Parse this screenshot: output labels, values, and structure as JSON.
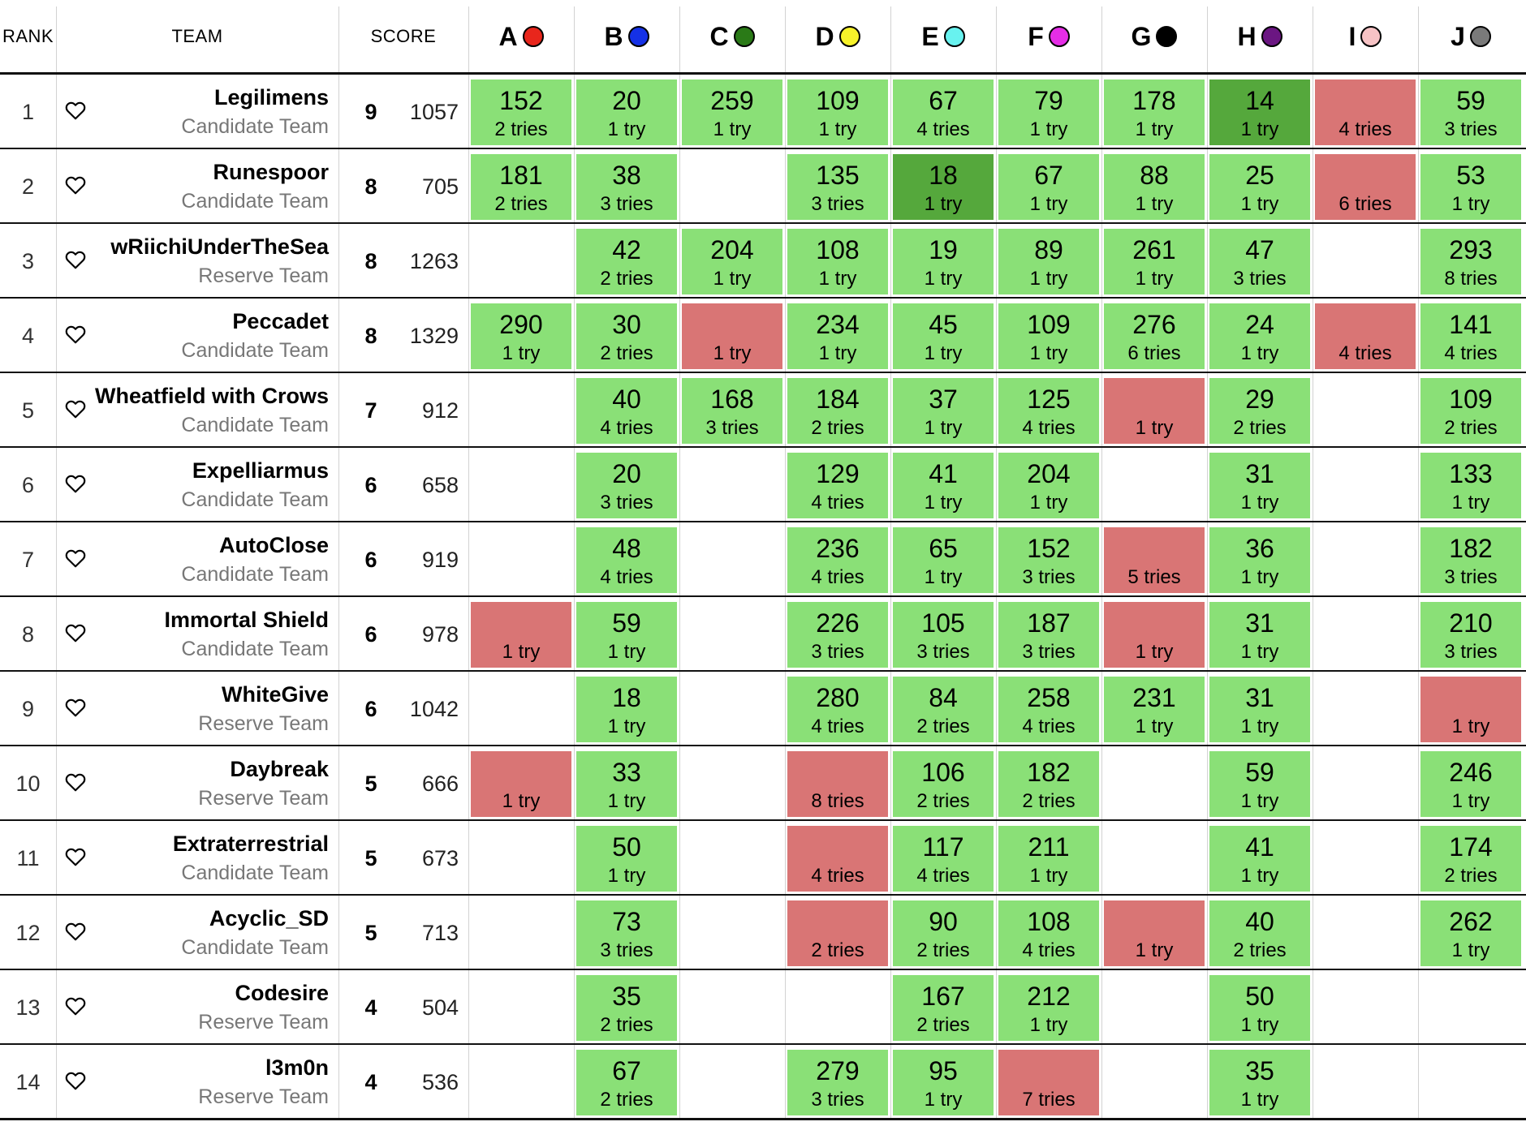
{
  "header": {
    "rank": "RANK",
    "team": "TEAM",
    "score": "SCORE"
  },
  "problems": [
    {
      "label": "A",
      "color": "#e8261c"
    },
    {
      "label": "B",
      "color": "#1531e6"
    },
    {
      "label": "C",
      "color": "#2a7a17"
    },
    {
      "label": "D",
      "color": "#f7f22a"
    },
    {
      "label": "E",
      "color": "#68f2ef"
    },
    {
      "label": "F",
      "color": "#e52de6"
    },
    {
      "label": "G",
      "color": "#000000"
    },
    {
      "label": "H",
      "color": "#6b1682"
    },
    {
      "label": "I",
      "color": "#f7c3c5"
    },
    {
      "label": "J",
      "color": "#7a7a7a"
    }
  ],
  "colors": {
    "solved": "#8ae077",
    "first_solve": "#55a83c",
    "failed": "#d97575"
  },
  "teams": [
    {
      "rank": "1",
      "name": "Legilimens",
      "affiliation": "Candidate Team",
      "solved": "9",
      "penalty": "1057",
      "results": [
        {
          "time": "152",
          "tries": "2 tries",
          "status": "ok"
        },
        {
          "time": "20",
          "tries": "1 try",
          "status": "ok"
        },
        {
          "time": "259",
          "tries": "1 try",
          "status": "ok"
        },
        {
          "time": "109",
          "tries": "1 try",
          "status": "ok"
        },
        {
          "time": "67",
          "tries": "4 tries",
          "status": "ok"
        },
        {
          "time": "79",
          "tries": "1 try",
          "status": "ok"
        },
        {
          "time": "178",
          "tries": "1 try",
          "status": "ok"
        },
        {
          "time": "14",
          "tries": "1 try",
          "status": "first"
        },
        {
          "time": "",
          "tries": "4 tries",
          "status": "fail"
        },
        {
          "time": "59",
          "tries": "3 tries",
          "status": "ok"
        }
      ]
    },
    {
      "rank": "2",
      "name": "Runespoor",
      "affiliation": "Candidate Team",
      "solved": "8",
      "penalty": "705",
      "results": [
        {
          "time": "181",
          "tries": "2 tries",
          "status": "ok"
        },
        {
          "time": "38",
          "tries": "3 tries",
          "status": "ok"
        },
        {
          "time": "",
          "tries": "",
          "status": "none"
        },
        {
          "time": "135",
          "tries": "3 tries",
          "status": "ok"
        },
        {
          "time": "18",
          "tries": "1 try",
          "status": "first"
        },
        {
          "time": "67",
          "tries": "1 try",
          "status": "ok"
        },
        {
          "time": "88",
          "tries": "1 try",
          "status": "ok"
        },
        {
          "time": "25",
          "tries": "1 try",
          "status": "ok"
        },
        {
          "time": "",
          "tries": "6 tries",
          "status": "fail"
        },
        {
          "time": "53",
          "tries": "1 try",
          "status": "ok"
        }
      ]
    },
    {
      "rank": "3",
      "name": "wRiichiUnderTheSea",
      "affiliation": "Reserve Team",
      "solved": "8",
      "penalty": "1263",
      "results": [
        {
          "time": "",
          "tries": "",
          "status": "none"
        },
        {
          "time": "42",
          "tries": "2 tries",
          "status": "ok"
        },
        {
          "time": "204",
          "tries": "1 try",
          "status": "ok"
        },
        {
          "time": "108",
          "tries": "1 try",
          "status": "ok"
        },
        {
          "time": "19",
          "tries": "1 try",
          "status": "ok"
        },
        {
          "time": "89",
          "tries": "1 try",
          "status": "ok"
        },
        {
          "time": "261",
          "tries": "1 try",
          "status": "ok"
        },
        {
          "time": "47",
          "tries": "3 tries",
          "status": "ok"
        },
        {
          "time": "",
          "tries": "",
          "status": "none"
        },
        {
          "time": "293",
          "tries": "8 tries",
          "status": "ok"
        }
      ]
    },
    {
      "rank": "4",
      "name": "Peccadet",
      "affiliation": "Candidate Team",
      "solved": "8",
      "penalty": "1329",
      "results": [
        {
          "time": "290",
          "tries": "1 try",
          "status": "ok"
        },
        {
          "time": "30",
          "tries": "2 tries",
          "status": "ok"
        },
        {
          "time": "",
          "tries": "1 try",
          "status": "fail"
        },
        {
          "time": "234",
          "tries": "1 try",
          "status": "ok"
        },
        {
          "time": "45",
          "tries": "1 try",
          "status": "ok"
        },
        {
          "time": "109",
          "tries": "1 try",
          "status": "ok"
        },
        {
          "time": "276",
          "tries": "6 tries",
          "status": "ok"
        },
        {
          "time": "24",
          "tries": "1 try",
          "status": "ok"
        },
        {
          "time": "",
          "tries": "4 tries",
          "status": "fail"
        },
        {
          "time": "141",
          "tries": "4 tries",
          "status": "ok"
        }
      ]
    },
    {
      "rank": "5",
      "name": "Wheatfield with Crows",
      "affiliation": "Candidate Team",
      "solved": "7",
      "penalty": "912",
      "results": [
        {
          "time": "",
          "tries": "",
          "status": "none"
        },
        {
          "time": "40",
          "tries": "4 tries",
          "status": "ok"
        },
        {
          "time": "168",
          "tries": "3 tries",
          "status": "ok"
        },
        {
          "time": "184",
          "tries": "2 tries",
          "status": "ok"
        },
        {
          "time": "37",
          "tries": "1 try",
          "status": "ok"
        },
        {
          "time": "125",
          "tries": "4 tries",
          "status": "ok"
        },
        {
          "time": "",
          "tries": "1 try",
          "status": "fail"
        },
        {
          "time": "29",
          "tries": "2 tries",
          "status": "ok"
        },
        {
          "time": "",
          "tries": "",
          "status": "none"
        },
        {
          "time": "109",
          "tries": "2 tries",
          "status": "ok"
        }
      ]
    },
    {
      "rank": "6",
      "name": "Expelliarmus",
      "affiliation": "Candidate Team",
      "solved": "6",
      "penalty": "658",
      "results": [
        {
          "time": "",
          "tries": "",
          "status": "none"
        },
        {
          "time": "20",
          "tries": "3 tries",
          "status": "ok"
        },
        {
          "time": "",
          "tries": "",
          "status": "none"
        },
        {
          "time": "129",
          "tries": "4 tries",
          "status": "ok"
        },
        {
          "time": "41",
          "tries": "1 try",
          "status": "ok"
        },
        {
          "time": "204",
          "tries": "1 try",
          "status": "ok"
        },
        {
          "time": "",
          "tries": "",
          "status": "none"
        },
        {
          "time": "31",
          "tries": "1 try",
          "status": "ok"
        },
        {
          "time": "",
          "tries": "",
          "status": "none"
        },
        {
          "time": "133",
          "tries": "1 try",
          "status": "ok"
        }
      ]
    },
    {
      "rank": "7",
      "name": "AutoClose",
      "affiliation": "Candidate Team",
      "solved": "6",
      "penalty": "919",
      "results": [
        {
          "time": "",
          "tries": "",
          "status": "none"
        },
        {
          "time": "48",
          "tries": "4 tries",
          "status": "ok"
        },
        {
          "time": "",
          "tries": "",
          "status": "none"
        },
        {
          "time": "236",
          "tries": "4 tries",
          "status": "ok"
        },
        {
          "time": "65",
          "tries": "1 try",
          "status": "ok"
        },
        {
          "time": "152",
          "tries": "3 tries",
          "status": "ok"
        },
        {
          "time": "",
          "tries": "5 tries",
          "status": "fail"
        },
        {
          "time": "36",
          "tries": "1 try",
          "status": "ok"
        },
        {
          "time": "",
          "tries": "",
          "status": "none"
        },
        {
          "time": "182",
          "tries": "3 tries",
          "status": "ok"
        }
      ]
    },
    {
      "rank": "8",
      "name": "Immortal Shield",
      "affiliation": "Candidate Team",
      "solved": "6",
      "penalty": "978",
      "results": [
        {
          "time": "",
          "tries": "1 try",
          "status": "fail"
        },
        {
          "time": "59",
          "tries": "1 try",
          "status": "ok"
        },
        {
          "time": "",
          "tries": "",
          "status": "none"
        },
        {
          "time": "226",
          "tries": "3 tries",
          "status": "ok"
        },
        {
          "time": "105",
          "tries": "3 tries",
          "status": "ok"
        },
        {
          "time": "187",
          "tries": "3 tries",
          "status": "ok"
        },
        {
          "time": "",
          "tries": "1 try",
          "status": "fail"
        },
        {
          "time": "31",
          "tries": "1 try",
          "status": "ok"
        },
        {
          "time": "",
          "tries": "",
          "status": "none"
        },
        {
          "time": "210",
          "tries": "3 tries",
          "status": "ok"
        }
      ]
    },
    {
      "rank": "9",
      "name": "WhiteGive",
      "affiliation": "Reserve Team",
      "solved": "6",
      "penalty": "1042",
      "results": [
        {
          "time": "",
          "tries": "",
          "status": "none"
        },
        {
          "time": "18",
          "tries": "1 try",
          "status": "ok"
        },
        {
          "time": "",
          "tries": "",
          "status": "none"
        },
        {
          "time": "280",
          "tries": "4 tries",
          "status": "ok"
        },
        {
          "time": "84",
          "tries": "2 tries",
          "status": "ok"
        },
        {
          "time": "258",
          "tries": "4 tries",
          "status": "ok"
        },
        {
          "time": "231",
          "tries": "1 try",
          "status": "ok"
        },
        {
          "time": "31",
          "tries": "1 try",
          "status": "ok"
        },
        {
          "time": "",
          "tries": "",
          "status": "none"
        },
        {
          "time": "",
          "tries": "1 try",
          "status": "fail"
        }
      ]
    },
    {
      "rank": "10",
      "name": "Daybreak",
      "affiliation": "Reserve Team",
      "solved": "5",
      "penalty": "666",
      "results": [
        {
          "time": "",
          "tries": "1 try",
          "status": "fail"
        },
        {
          "time": "33",
          "tries": "1 try",
          "status": "ok"
        },
        {
          "time": "",
          "tries": "",
          "status": "none"
        },
        {
          "time": "",
          "tries": "8 tries",
          "status": "fail"
        },
        {
          "time": "106",
          "tries": "2 tries",
          "status": "ok"
        },
        {
          "time": "182",
          "tries": "2 tries",
          "status": "ok"
        },
        {
          "time": "",
          "tries": "",
          "status": "none"
        },
        {
          "time": "59",
          "tries": "1 try",
          "status": "ok"
        },
        {
          "time": "",
          "tries": "",
          "status": "none"
        },
        {
          "time": "246",
          "tries": "1 try",
          "status": "ok"
        }
      ]
    },
    {
      "rank": "11",
      "name": "Extraterrestrial",
      "affiliation": "Candidate Team",
      "solved": "5",
      "penalty": "673",
      "results": [
        {
          "time": "",
          "tries": "",
          "status": "none"
        },
        {
          "time": "50",
          "tries": "1 try",
          "status": "ok"
        },
        {
          "time": "",
          "tries": "",
          "status": "none"
        },
        {
          "time": "",
          "tries": "4 tries",
          "status": "fail"
        },
        {
          "time": "117",
          "tries": "4 tries",
          "status": "ok"
        },
        {
          "time": "211",
          "tries": "1 try",
          "status": "ok"
        },
        {
          "time": "",
          "tries": "",
          "status": "none"
        },
        {
          "time": "41",
          "tries": "1 try",
          "status": "ok"
        },
        {
          "time": "",
          "tries": "",
          "status": "none"
        },
        {
          "time": "174",
          "tries": "2 tries",
          "status": "ok"
        }
      ]
    },
    {
      "rank": "12",
      "name": "Acyclic_SD",
      "affiliation": "Candidate Team",
      "solved": "5",
      "penalty": "713",
      "results": [
        {
          "time": "",
          "tries": "",
          "status": "none"
        },
        {
          "time": "73",
          "tries": "3 tries",
          "status": "ok"
        },
        {
          "time": "",
          "tries": "",
          "status": "none"
        },
        {
          "time": "",
          "tries": "2 tries",
          "status": "fail"
        },
        {
          "time": "90",
          "tries": "2 tries",
          "status": "ok"
        },
        {
          "time": "108",
          "tries": "4 tries",
          "status": "ok"
        },
        {
          "time": "",
          "tries": "1 try",
          "status": "fail"
        },
        {
          "time": "40",
          "tries": "2 tries",
          "status": "ok"
        },
        {
          "time": "",
          "tries": "",
          "status": "none"
        },
        {
          "time": "262",
          "tries": "1 try",
          "status": "ok"
        }
      ]
    },
    {
      "rank": "13",
      "name": "Codesire",
      "affiliation": "Reserve Team",
      "solved": "4",
      "penalty": "504",
      "results": [
        {
          "time": "",
          "tries": "",
          "status": "none"
        },
        {
          "time": "35",
          "tries": "2 tries",
          "status": "ok"
        },
        {
          "time": "",
          "tries": "",
          "status": "none"
        },
        {
          "time": "",
          "tries": "",
          "status": "none"
        },
        {
          "time": "167",
          "tries": "2 tries",
          "status": "ok"
        },
        {
          "time": "212",
          "tries": "1 try",
          "status": "ok"
        },
        {
          "time": "",
          "tries": "",
          "status": "none"
        },
        {
          "time": "50",
          "tries": "1 try",
          "status": "ok"
        },
        {
          "time": "",
          "tries": "",
          "status": "none"
        },
        {
          "time": "",
          "tries": "",
          "status": "none"
        }
      ]
    },
    {
      "rank": "14",
      "name": "l3m0n",
      "affiliation": "Reserve Team",
      "solved": "4",
      "penalty": "536",
      "results": [
        {
          "time": "",
          "tries": "",
          "status": "none"
        },
        {
          "time": "67",
          "tries": "2 tries",
          "status": "ok"
        },
        {
          "time": "",
          "tries": "",
          "status": "none"
        },
        {
          "time": "279",
          "tries": "3 tries",
          "status": "ok"
        },
        {
          "time": "95",
          "tries": "1 try",
          "status": "ok"
        },
        {
          "time": "",
          "tries": "7 tries",
          "status": "fail"
        },
        {
          "time": "",
          "tries": "",
          "status": "none"
        },
        {
          "time": "35",
          "tries": "1 try",
          "status": "ok"
        },
        {
          "time": "",
          "tries": "",
          "status": "none"
        },
        {
          "time": "",
          "tries": "",
          "status": "none"
        }
      ]
    }
  ]
}
